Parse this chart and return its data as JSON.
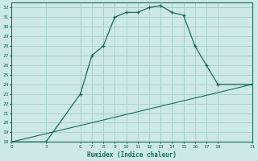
{
  "xlabel": "Humidex (Indice chaleur)",
  "ylabel": "",
  "bg_color": "#cce8e8",
  "grid_color": "#aacfcf",
  "line_color": "#1a6b5a",
  "line1_x": [
    0,
    3,
    6,
    7,
    8,
    9,
    10,
    11,
    12,
    13,
    14,
    15,
    16,
    17,
    18,
    21
  ],
  "line1_y": [
    18,
    18,
    23,
    27,
    28,
    31,
    31.5,
    31.5,
    32,
    32.2,
    31.5,
    31.2,
    28,
    26,
    24,
    24
  ],
  "line2_x": [
    0,
    21
  ],
  "line2_y": [
    18,
    24
  ],
  "ylim": [
    18,
    32.5
  ],
  "xlim": [
    0,
    21
  ],
  "yticks": [
    18,
    19,
    20,
    21,
    22,
    23,
    24,
    25,
    26,
    27,
    28,
    29,
    30,
    31,
    32
  ],
  "xticks": [
    0,
    3,
    6,
    7,
    8,
    9,
    10,
    11,
    12,
    13,
    14,
    15,
    16,
    17,
    18,
    21
  ]
}
